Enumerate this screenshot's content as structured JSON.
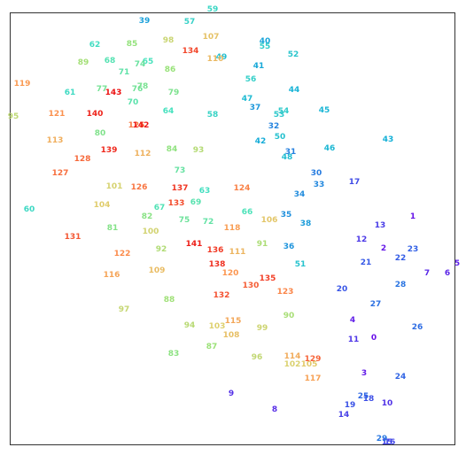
{
  "chart_data": {
    "type": "scatter",
    "title": "",
    "xlabel": "",
    "ylabel": "",
    "xlim": [
      0,
      526
    ],
    "ylim": [
      0,
      514
    ],
    "y_axis_inverted": true,
    "axes_ticks_visible": false,
    "grid": false,
    "legend": "none",
    "color_map": "label index 0 (violet) through 143 (red), rainbow",
    "points": [
      {
        "label": "0",
        "x": 422,
        "y": 382
      },
      {
        "label": "1",
        "x": 466,
        "y": 245
      },
      {
        "label": "2",
        "x": 433,
        "y": 281
      },
      {
        "label": "3",
        "x": 411,
        "y": 422
      },
      {
        "label": "4",
        "x": 398,
        "y": 362
      },
      {
        "label": "5",
        "x": 516,
        "y": 298
      },
      {
        "label": "6",
        "x": 505,
        "y": 309
      },
      {
        "label": "7",
        "x": 482,
        "y": 309
      },
      {
        "label": "8",
        "x": 310,
        "y": 463
      },
      {
        "label": "9",
        "x": 261,
        "y": 445
      },
      {
        "label": "10",
        "x": 437,
        "y": 456
      },
      {
        "label": "11",
        "x": 399,
        "y": 384
      },
      {
        "label": "12",
        "x": 408,
        "y": 271
      },
      {
        "label": "13",
        "x": 429,
        "y": 255
      },
      {
        "label": "14",
        "x": 388,
        "y": 469
      },
      {
        "label": "15",
        "x": 437,
        "y": 500
      },
      {
        "label": "16",
        "x": 440,
        "y": 500
      },
      {
        "label": "17",
        "x": 400,
        "y": 206
      },
      {
        "label": "18",
        "x": 416,
        "y": 451
      },
      {
        "label": "19",
        "x": 395,
        "y": 458
      },
      {
        "label": "20",
        "x": 386,
        "y": 327
      },
      {
        "label": "21",
        "x": 413,
        "y": 297
      },
      {
        "label": "22",
        "x": 452,
        "y": 292
      },
      {
        "label": "23",
        "x": 466,
        "y": 282
      },
      {
        "label": "24",
        "x": 452,
        "y": 426
      },
      {
        "label": "25",
        "x": 410,
        "y": 448
      },
      {
        "label": "26",
        "x": 471,
        "y": 370
      },
      {
        "label": "27",
        "x": 424,
        "y": 344
      },
      {
        "label": "28",
        "x": 452,
        "y": 322
      },
      {
        "label": "29",
        "x": 431,
        "y": 496
      },
      {
        "label": "30",
        "x": 357,
        "y": 196
      },
      {
        "label": "31",
        "x": 328,
        "y": 172
      },
      {
        "label": "32",
        "x": 309,
        "y": 143
      },
      {
        "label": "33",
        "x": 360,
        "y": 209
      },
      {
        "label": "34",
        "x": 338,
        "y": 220
      },
      {
        "label": "35",
        "x": 323,
        "y": 243
      },
      {
        "label": "36",
        "x": 326,
        "y": 279
      },
      {
        "label": "37",
        "x": 288,
        "y": 122
      },
      {
        "label": "38",
        "x": 345,
        "y": 253
      },
      {
        "label": "39",
        "x": 163,
        "y": 24
      },
      {
        "label": "40",
        "x": 299,
        "y": 47
      },
      {
        "label": "41",
        "x": 292,
        "y": 75
      },
      {
        "label": "42",
        "x": 294,
        "y": 160
      },
      {
        "label": "43",
        "x": 438,
        "y": 158
      },
      {
        "label": "44",
        "x": 332,
        "y": 102
      },
      {
        "label": "45",
        "x": 366,
        "y": 125
      },
      {
        "label": "46",
        "x": 372,
        "y": 168
      },
      {
        "label": "47",
        "x": 279,
        "y": 112
      },
      {
        "label": "48",
        "x": 324,
        "y": 178
      },
      {
        "label": "49",
        "x": 250,
        "y": 65
      },
      {
        "label": "50",
        "x": 316,
        "y": 155
      },
      {
        "label": "51",
        "x": 339,
        "y": 299
      },
      {
        "label": "52",
        "x": 331,
        "y": 62
      },
      {
        "label": "53",
        "x": 315,
        "y": 130
      },
      {
        "label": "54",
        "x": 320,
        "y": 126
      },
      {
        "label": "55",
        "x": 299,
        "y": 53
      },
      {
        "label": "56",
        "x": 283,
        "y": 90
      },
      {
        "label": "57",
        "x": 214,
        "y": 25
      },
      {
        "label": "58",
        "x": 240,
        "y": 130
      },
      {
        "label": "59",
        "x": 240,
        "y": 11
      },
      {
        "label": "60",
        "x": 33,
        "y": 237
      },
      {
        "label": "61",
        "x": 79,
        "y": 105
      },
      {
        "label": "62",
        "x": 107,
        "y": 51
      },
      {
        "label": "63",
        "x": 231,
        "y": 216
      },
      {
        "label": "64",
        "x": 190,
        "y": 126
      },
      {
        "label": "65",
        "x": 167,
        "y": 70
      },
      {
        "label": "66",
        "x": 279,
        "y": 240
      },
      {
        "label": "67",
        "x": 180,
        "y": 235
      },
      {
        "label": "68",
        "x": 124,
        "y": 69
      },
      {
        "label": "69",
        "x": 221,
        "y": 229
      },
      {
        "label": "70",
        "x": 150,
        "y": 116
      },
      {
        "label": "71",
        "x": 140,
        "y": 82
      },
      {
        "label": "72",
        "x": 235,
        "y": 251
      },
      {
        "label": "73",
        "x": 203,
        "y": 193
      },
      {
        "label": "74",
        "x": 158,
        "y": 73
      },
      {
        "label": "75",
        "x": 208,
        "y": 249
      },
      {
        "label": "76",
        "x": 155,
        "y": 101
      },
      {
        "label": "77",
        "x": 115,
        "y": 101
      },
      {
        "label": "78",
        "x": 161,
        "y": 98
      },
      {
        "label": "79",
        "x": 196,
        "y": 105
      },
      {
        "label": "80",
        "x": 113,
        "y": 151
      },
      {
        "label": "81",
        "x": 127,
        "y": 258
      },
      {
        "label": "82",
        "x": 166,
        "y": 245
      },
      {
        "label": "83",
        "x": 196,
        "y": 400
      },
      {
        "label": "84",
        "x": 194,
        "y": 169
      },
      {
        "label": "85",
        "x": 149,
        "y": 50
      },
      {
        "label": "86",
        "x": 192,
        "y": 79
      },
      {
        "label": "87",
        "x": 239,
        "y": 392
      },
      {
        "label": "88",
        "x": 191,
        "y": 339
      },
      {
        "label": "89",
        "x": 94,
        "y": 71
      },
      {
        "label": "90",
        "x": 326,
        "y": 357
      },
      {
        "label": "91",
        "x": 296,
        "y": 276
      },
      {
        "label": "92",
        "x": 182,
        "y": 282
      },
      {
        "label": "93",
        "x": 224,
        "y": 170
      },
      {
        "label": "94",
        "x": 214,
        "y": 368
      },
      {
        "label": "95",
        "x": 15,
        "y": 132
      },
      {
        "label": "96",
        "x": 290,
        "y": 404
      },
      {
        "label": "97",
        "x": 140,
        "y": 350
      },
      {
        "label": "98",
        "x": 190,
        "y": 46
      },
      {
        "label": "99",
        "x": 296,
        "y": 371
      },
      {
        "label": "100",
        "x": 170,
        "y": 262
      },
      {
        "label": "101",
        "x": 129,
        "y": 211
      },
      {
        "label": "102",
        "x": 330,
        "y": 412
      },
      {
        "label": "103",
        "x": 245,
        "y": 369
      },
      {
        "label": "104",
        "x": 115,
        "y": 232
      },
      {
        "label": "105",
        "x": 349,
        "y": 412
      },
      {
        "label": "106",
        "x": 304,
        "y": 249
      },
      {
        "label": "107",
        "x": 238,
        "y": 42
      },
      {
        "label": "108",
        "x": 261,
        "y": 379
      },
      {
        "label": "109",
        "x": 177,
        "y": 306
      },
      {
        "label": "110",
        "x": 243,
        "y": 67
      },
      {
        "label": "111",
        "x": 268,
        "y": 285
      },
      {
        "label": "112",
        "x": 161,
        "y": 174
      },
      {
        "label": "113",
        "x": 62,
        "y": 159
      },
      {
        "label": "114",
        "x": 330,
        "y": 403
      },
      {
        "label": "115",
        "x": 263,
        "y": 363
      },
      {
        "label": "116",
        "x": 126,
        "y": 311
      },
      {
        "label": "117",
        "x": 353,
        "y": 428
      },
      {
        "label": "118",
        "x": 262,
        "y": 258
      },
      {
        "label": "119",
        "x": 25,
        "y": 95
      },
      {
        "label": "120",
        "x": 260,
        "y": 309
      },
      {
        "label": "121",
        "x": 64,
        "y": 129
      },
      {
        "label": "122",
        "x": 138,
        "y": 287
      },
      {
        "label": "123",
        "x": 322,
        "y": 330
      },
      {
        "label": "124",
        "x": 273,
        "y": 213
      },
      {
        "label": "125",
        "x": 154,
        "y": 142
      },
      {
        "label": "126",
        "x": 157,
        "y": 212
      },
      {
        "label": "127",
        "x": 68,
        "y": 196
      },
      {
        "label": "128",
        "x": 93,
        "y": 180
      },
      {
        "label": "129",
        "x": 353,
        "y": 406
      },
      {
        "label": "130",
        "x": 283,
        "y": 323
      },
      {
        "label": "131",
        "x": 82,
        "y": 268
      },
      {
        "label": "132",
        "x": 250,
        "y": 334
      },
      {
        "label": "133",
        "x": 199,
        "y": 230
      },
      {
        "label": "134",
        "x": 215,
        "y": 58
      },
      {
        "label": "135",
        "x": 302,
        "y": 315
      },
      {
        "label": "136",
        "x": 243,
        "y": 283
      },
      {
        "label": "137",
        "x": 203,
        "y": 213
      },
      {
        "label": "138",
        "x": 245,
        "y": 299
      },
      {
        "label": "139",
        "x": 123,
        "y": 170
      },
      {
        "label": "140",
        "x": 107,
        "y": 129
      },
      {
        "label": "141",
        "x": 219,
        "y": 276
      },
      {
        "label": "142",
        "x": 159,
        "y": 142
      },
      {
        "label": "143",
        "x": 128,
        "y": 105
      }
    ]
  }
}
